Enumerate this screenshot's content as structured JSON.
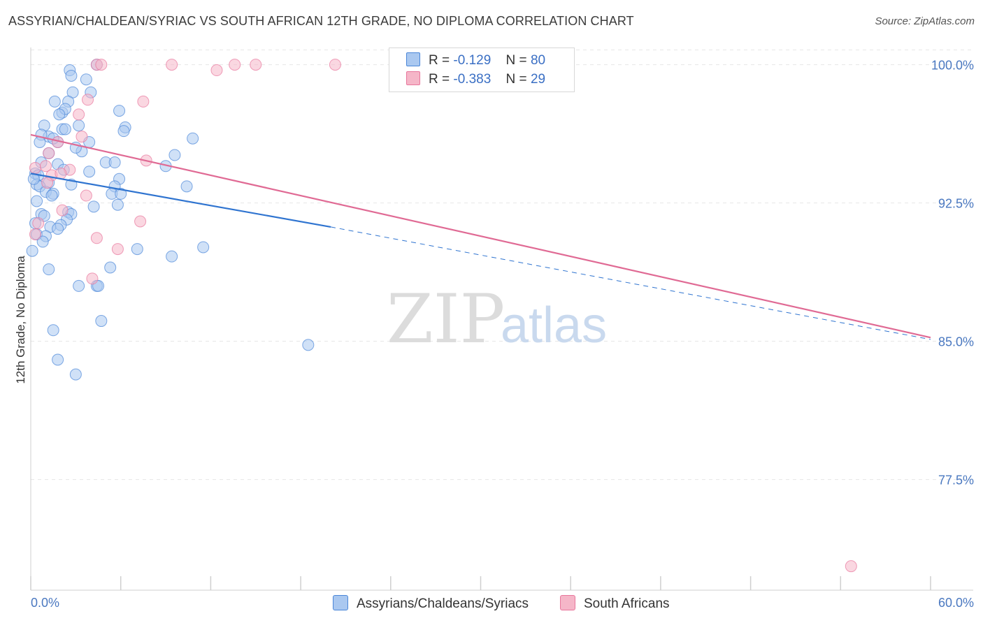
{
  "header": {
    "title": "ASSYRIAN/CHALDEAN/SYRIAC VS SOUTH AFRICAN 12TH GRADE, NO DIPLOMA CORRELATION CHART",
    "source": "Source: ZipAtlas.com"
  },
  "watermark": {
    "zip": "ZIP",
    "atlas": "atlas"
  },
  "legend": {
    "rows": [
      {
        "r_label": "R =",
        "r_value": "-0.129",
        "n_label": "N =",
        "n_value": "80",
        "color": "#aac8f0"
      },
      {
        "r_label": "R =",
        "r_value": "-0.383",
        "n_label": "N =",
        "n_value": "29",
        "color": "#f5b6c8"
      }
    ]
  },
  "bottom_legend": [
    {
      "label": "Assyrians/Chaldeans/Syriacs",
      "color": "#aac8f0"
    },
    {
      "label": "South Africans",
      "color": "#f5b6c8"
    }
  ],
  "chart_data": {
    "type": "scatter",
    "title": "ASSYRIAN/CHALDEAN/SYRIAC VS SOUTH AFRICAN 12TH GRADE, NO DIPLOMA CORRELATION CHART",
    "xlabel": "",
    "ylabel": "12th Grade, No Diploma",
    "xlim": [
      0,
      60
    ],
    "ylim": [
      71.5,
      101.5
    ],
    "x_tick_labels": [
      "0.0%",
      "60.0%"
    ],
    "y_ticks": [
      77.5,
      85.0,
      92.5,
      100.0
    ],
    "y_tick_labels": [
      "77.5%",
      "85.0%",
      "92.5%",
      "100.0%"
    ],
    "grid": true,
    "legend_position": "top-center",
    "series": [
      {
        "name": "Assyrians/Chaldeans/Syriacs",
        "color": "#4a86d8",
        "fill": "#aac8f0",
        "trend": {
          "x0": 0,
          "y0": 94.1,
          "x1": 20.0,
          "y1": 91.2,
          "dashed_to_x": 60,
          "dashed_to_y": 85.1
        },
        "points": [
          [
            2.6,
            99.7
          ],
          [
            4.4,
            100.0
          ],
          [
            2.7,
            99.4
          ],
          [
            4.0,
            98.5
          ],
          [
            2.8,
            98.5
          ],
          [
            2.5,
            98.0
          ],
          [
            3.7,
            99.2
          ],
          [
            1.6,
            98.0
          ],
          [
            2.1,
            97.4
          ],
          [
            2.3,
            97.6
          ],
          [
            1.9,
            97.3
          ],
          [
            0.9,
            96.7
          ],
          [
            3.2,
            96.7
          ],
          [
            2.1,
            96.5
          ],
          [
            2.3,
            96.5
          ],
          [
            5.9,
            97.5
          ],
          [
            6.3,
            96.6
          ],
          [
            6.2,
            96.4
          ],
          [
            1.2,
            96.1
          ],
          [
            0.7,
            96.2
          ],
          [
            1.8,
            95.8
          ],
          [
            1.5,
            96.0
          ],
          [
            0.6,
            95.8
          ],
          [
            3.9,
            95.8
          ],
          [
            3.4,
            95.3
          ],
          [
            10.8,
            96.0
          ],
          [
            1.2,
            95.2
          ],
          [
            9.6,
            95.1
          ],
          [
            5.0,
            94.7
          ],
          [
            5.6,
            94.7
          ],
          [
            0.7,
            94.7
          ],
          [
            1.8,
            94.6
          ],
          [
            9.0,
            94.5
          ],
          [
            3.9,
            94.2
          ],
          [
            0.3,
            94.1
          ],
          [
            0.5,
            94.0
          ],
          [
            5.9,
            93.8
          ],
          [
            1.2,
            93.6
          ],
          [
            2.7,
            93.5
          ],
          [
            0.4,
            93.5
          ],
          [
            0.6,
            93.4
          ],
          [
            10.4,
            93.4
          ],
          [
            5.6,
            93.4
          ],
          [
            1.0,
            93.1
          ],
          [
            1.5,
            93.0
          ],
          [
            5.4,
            93.0
          ],
          [
            0.4,
            92.6
          ],
          [
            5.8,
            92.4
          ],
          [
            2.5,
            92.0
          ],
          [
            0.7,
            91.9
          ],
          [
            2.7,
            91.9
          ],
          [
            0.9,
            91.8
          ],
          [
            2.4,
            91.6
          ],
          [
            0.3,
            91.4
          ],
          [
            2.0,
            91.3
          ],
          [
            1.3,
            91.2
          ],
          [
            1.8,
            91.1
          ],
          [
            0.4,
            90.8
          ],
          [
            1.0,
            90.7
          ],
          [
            11.5,
            90.1
          ],
          [
            7.1,
            90.0
          ],
          [
            9.4,
            89.6
          ],
          [
            0.1,
            89.9
          ],
          [
            5.3,
            89.0
          ],
          [
            1.2,
            88.9
          ],
          [
            3.2,
            88.0
          ],
          [
            4.4,
            88.0
          ],
          [
            4.5,
            88.0
          ],
          [
            4.7,
            86.1
          ],
          [
            1.5,
            85.6
          ],
          [
            18.5,
            84.8
          ],
          [
            1.8,
            84.0
          ],
          [
            3.0,
            83.2
          ],
          [
            0.2,
            93.8
          ],
          [
            1.4,
            92.9
          ],
          [
            3.0,
            95.5
          ],
          [
            0.8,
            90.4
          ],
          [
            6.0,
            93.0
          ],
          [
            2.2,
            94.3
          ],
          [
            4.2,
            92.3
          ]
        ]
      },
      {
        "name": "South Africans",
        "color": "#e8769c",
        "fill": "#f5b6c8",
        "trend": {
          "x0": 0,
          "y0": 96.2,
          "x1": 60,
          "y1": 85.2
        },
        "points": [
          [
            4.4,
            100.0
          ],
          [
            4.7,
            100.0
          ],
          [
            9.4,
            100.0
          ],
          [
            13.6,
            100.0
          ],
          [
            15.0,
            100.0
          ],
          [
            20.3,
            100.0
          ],
          [
            12.4,
            99.7
          ],
          [
            7.5,
            98.0
          ],
          [
            3.8,
            98.1
          ],
          [
            3.2,
            97.3
          ],
          [
            3.4,
            96.1
          ],
          [
            1.8,
            95.8
          ],
          [
            1.2,
            95.2
          ],
          [
            7.7,
            94.8
          ],
          [
            0.3,
            94.4
          ],
          [
            1.0,
            94.5
          ],
          [
            2.6,
            94.3
          ],
          [
            1.4,
            94.0
          ],
          [
            2.0,
            94.1
          ],
          [
            1.1,
            93.6
          ],
          [
            3.7,
            92.9
          ],
          [
            2.1,
            92.1
          ],
          [
            7.3,
            91.5
          ],
          [
            0.5,
            91.4
          ],
          [
            0.3,
            90.8
          ],
          [
            4.4,
            90.6
          ],
          [
            5.8,
            90.0
          ],
          [
            4.1,
            88.4
          ],
          [
            54.7,
            72.8
          ]
        ]
      }
    ]
  }
}
